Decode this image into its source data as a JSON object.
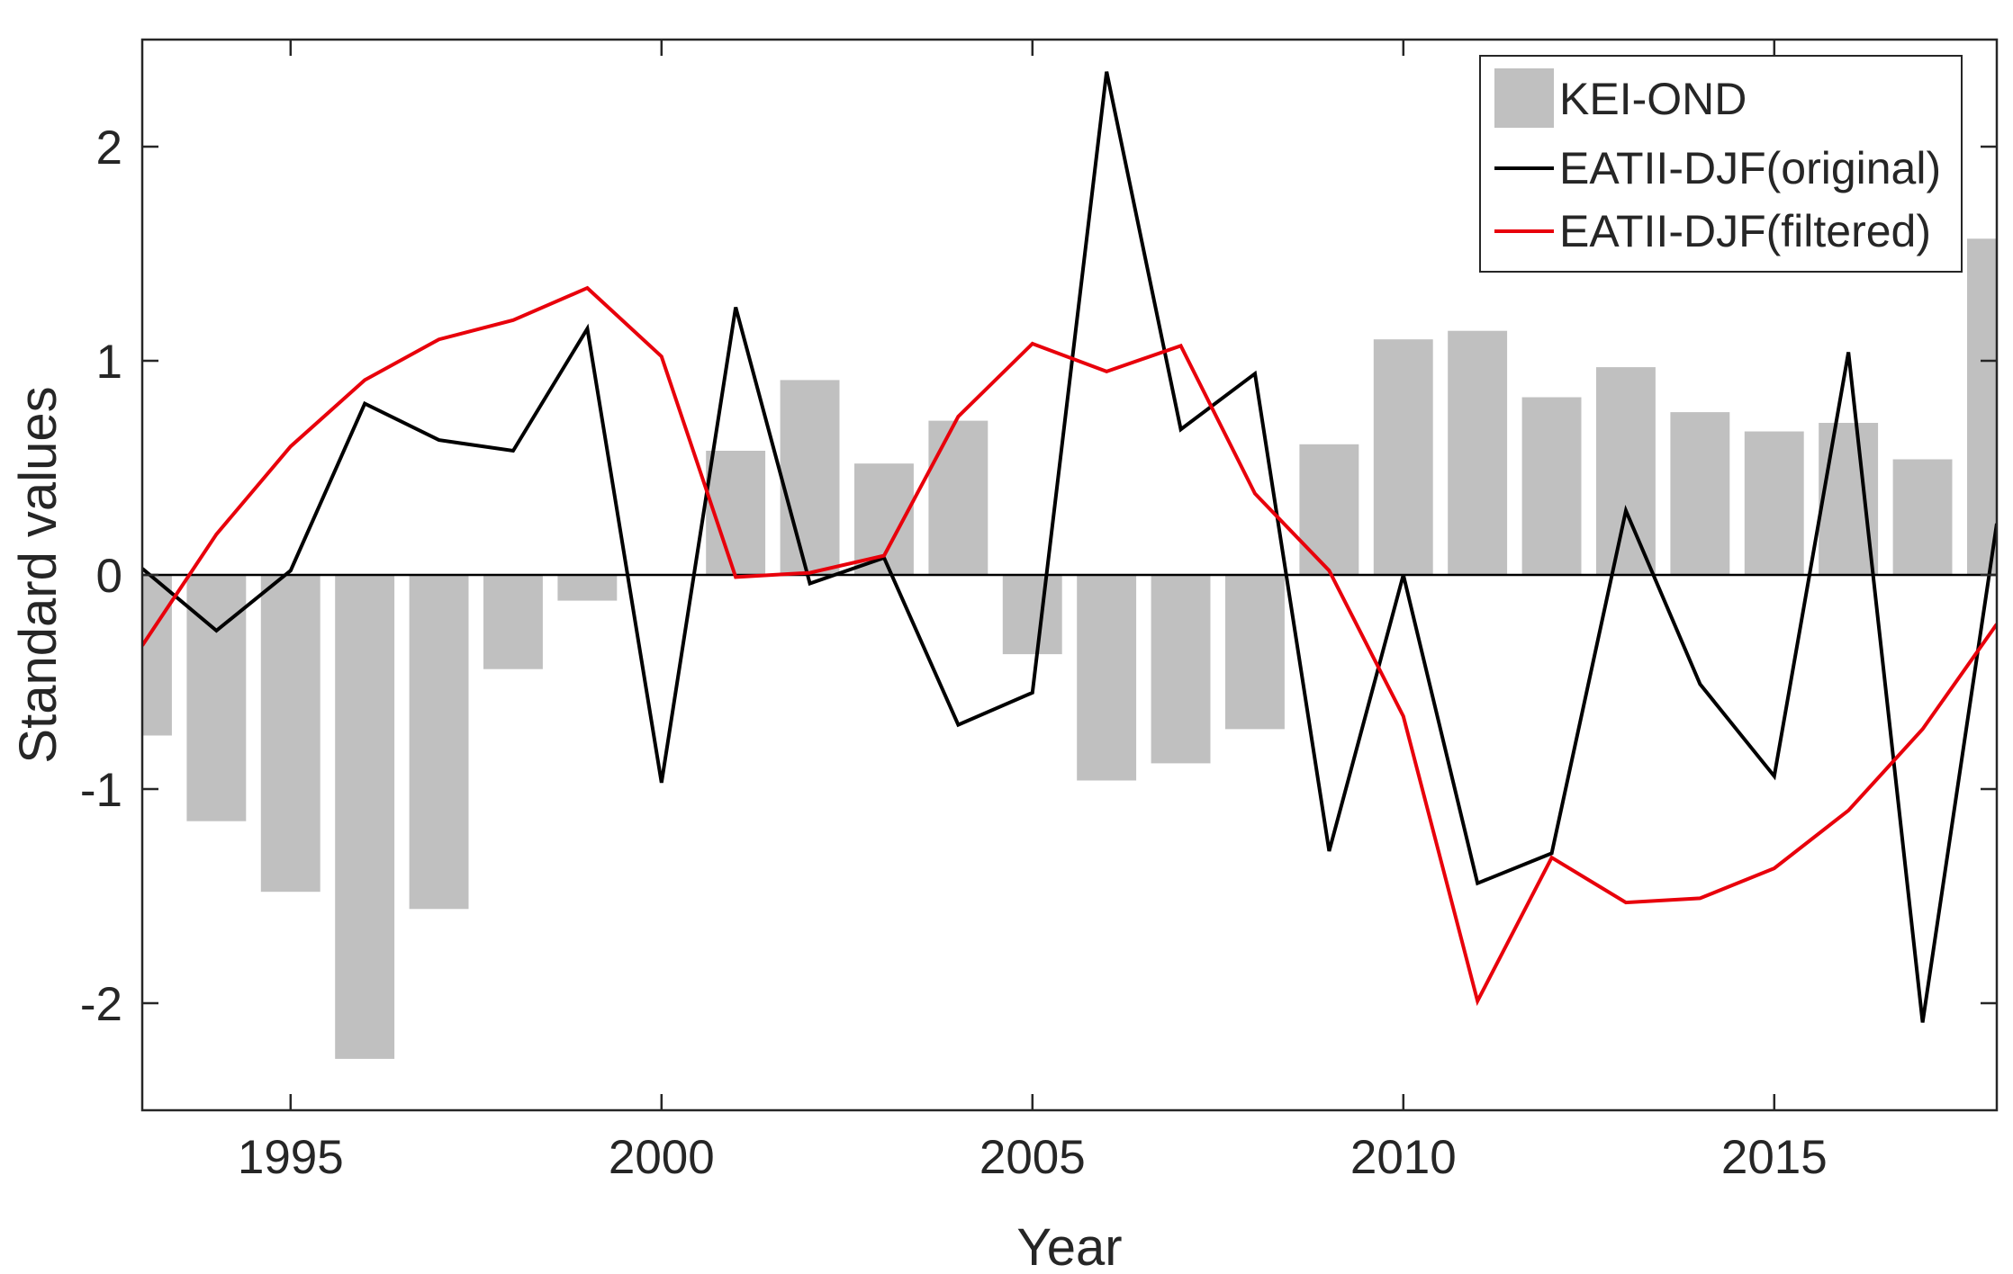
{
  "chart_data": {
    "type": "bar",
    "title": "",
    "xlabel": "Year",
    "ylabel": "Standard values",
    "xlim": [
      1993,
      2018
    ],
    "ylim": [
      -2.5,
      2.5
    ],
    "xticks": [
      1995,
      2000,
      2005,
      2010,
      2015
    ],
    "yticks": [
      -2,
      -1,
      0,
      1,
      2
    ],
    "grid": false,
    "legend_position": "top-right",
    "x": [
      1993,
      1994,
      1995,
      1996,
      1997,
      1998,
      1999,
      2000,
      2001,
      2002,
      2003,
      2004,
      2005,
      2006,
      2007,
      2008,
      2009,
      2010,
      2011,
      2012,
      2013,
      2014,
      2015,
      2016,
      2017,
      2018
    ],
    "series": [
      {
        "name": "KEI-OND",
        "kind": "bar",
        "color": "#c0c0c0",
        "values": [
          -0.75,
          -1.15,
          -1.48,
          -2.26,
          -1.56,
          -0.44,
          -0.12,
          0.0,
          0.58,
          0.91,
          0.52,
          0.72,
          -0.37,
          -0.96,
          -0.88,
          -0.72,
          0.61,
          1.1,
          1.14,
          0.83,
          0.97,
          0.76,
          0.67,
          0.71,
          0.54,
          1.57
        ]
      },
      {
        "name": "EATII-DJF(original)",
        "kind": "line",
        "color": "#000000",
        "values": [
          0.03,
          -0.26,
          0.02,
          0.8,
          0.63,
          0.58,
          1.15,
          -0.97,
          1.25,
          -0.04,
          0.08,
          -0.7,
          -0.55,
          2.35,
          0.68,
          0.94,
          -1.29,
          0.0,
          -1.44,
          -1.3,
          0.3,
          -0.51,
          -0.94,
          1.04,
          -2.09,
          0.24
        ]
      },
      {
        "name": "EATII-DJF(filtered)",
        "kind": "line",
        "color": "#e8000b",
        "values": [
          -0.33,
          0.19,
          0.6,
          0.91,
          1.1,
          1.19,
          1.34,
          1.02,
          -0.01,
          0.01,
          0.09,
          0.74,
          1.08,
          0.95,
          1.07,
          0.38,
          0.02,
          -0.66,
          -1.99,
          -1.32,
          -1.53,
          -1.51,
          -1.37,
          -1.1,
          -0.72,
          -0.23
        ]
      }
    ]
  }
}
